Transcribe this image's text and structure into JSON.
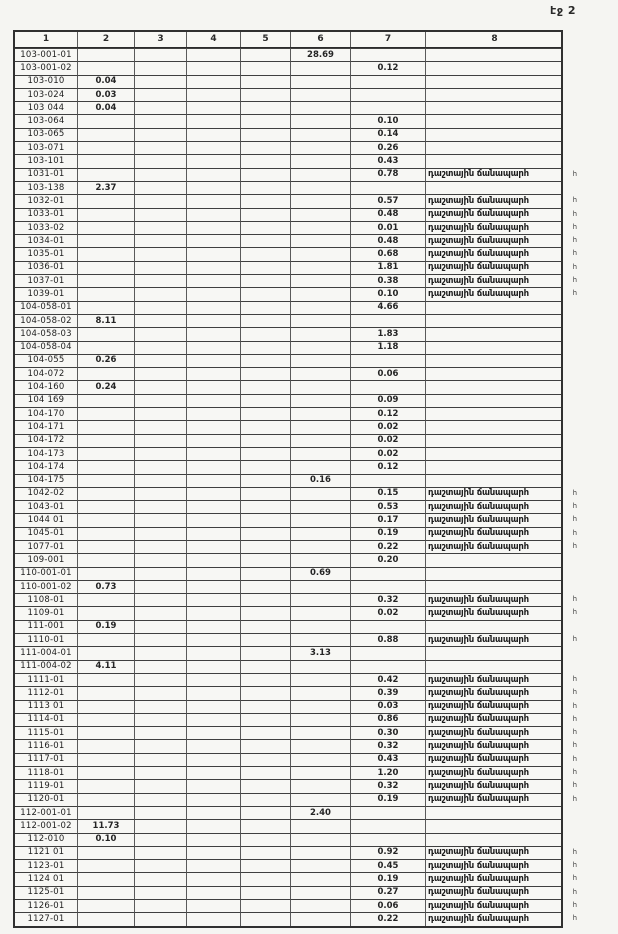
{
  "page_label": "էջ 2",
  "table": {
    "headers": [
      "1",
      "2",
      "3",
      "4",
      "5",
      "6",
      "7",
      "8"
    ],
    "note_text": "դաշտային ճանապարհ",
    "note_overflow": "հ",
    "rows": [
      {
        "id": "103-001-01",
        "c2": "",
        "c6": "28.69",
        "c7": "",
        "note": false
      },
      {
        "id": "103-001-02",
        "c2": "",
        "c6": "",
        "c7": "0.12",
        "note": false
      },
      {
        "id": "103-010",
        "c2": "0.04",
        "c6": "",
        "c7": "",
        "note": false
      },
      {
        "id": "103-024",
        "c2": "0.03",
        "c6": "",
        "c7": "",
        "note": false
      },
      {
        "id": "103 044",
        "c2": "0.04",
        "c6": "",
        "c7": "",
        "note": false
      },
      {
        "id": "103-064",
        "c2": "",
        "c6": "",
        "c7": "0.10",
        "note": false
      },
      {
        "id": "103-065",
        "c2": "",
        "c6": "",
        "c7": "0.14",
        "note": false
      },
      {
        "id": "103-071",
        "c2": "",
        "c6": "",
        "c7": "0.26",
        "note": false
      },
      {
        "id": "103-101",
        "c2": "",
        "c6": "",
        "c7": "0.43",
        "note": false
      },
      {
        "id": "1031-01",
        "c2": "",
        "c6": "",
        "c7": "0.78",
        "note": true
      },
      {
        "id": "103-138",
        "c2": "2.37",
        "c6": "",
        "c7": "",
        "note": false
      },
      {
        "id": "1032-01",
        "c2": "",
        "c6": "",
        "c7": "0.57",
        "note": true
      },
      {
        "id": "1033-01",
        "c2": "",
        "c6": "",
        "c7": "0.48",
        "note": true
      },
      {
        "id": "1033-02",
        "c2": "",
        "c6": "",
        "c7": "0.01",
        "note": true
      },
      {
        "id": "1034-01",
        "c2": "",
        "c6": "",
        "c7": "0.48",
        "note": true
      },
      {
        "id": "1035-01",
        "c2": "",
        "c6": "",
        "c7": "0.68",
        "note": true
      },
      {
        "id": "1036-01",
        "c2": "",
        "c6": "",
        "c7": "1.81",
        "note": true
      },
      {
        "id": "1037-01",
        "c2": "",
        "c6": "",
        "c7": "0.38",
        "note": true
      },
      {
        "id": "1039-01",
        "c2": "",
        "c6": "",
        "c7": "0.10",
        "note": true
      },
      {
        "id": "104-058-01",
        "c2": "",
        "c6": "",
        "c7": "4.66",
        "note": false
      },
      {
        "id": "104-058-02",
        "c2": "8.11",
        "c6": "",
        "c7": "",
        "note": false
      },
      {
        "id": "104-058-03",
        "c2": "",
        "c6": "",
        "c7": "1.83",
        "note": false
      },
      {
        "id": "104-058-04",
        "c2": "",
        "c6": "",
        "c7": "1.18",
        "note": false
      },
      {
        "id": "104-055",
        "c2": "0.26",
        "c6": "",
        "c7": "",
        "note": false
      },
      {
        "id": "104-072",
        "c2": "",
        "c6": "",
        "c7": "0.06",
        "note": false
      },
      {
        "id": "104-160",
        "c2": "0.24",
        "c6": "",
        "c7": "",
        "note": false
      },
      {
        "id": "104 169",
        "c2": "",
        "c6": "",
        "c7": "0.09",
        "note": false
      },
      {
        "id": "104-170",
        "c2": "",
        "c6": "",
        "c7": "0.12",
        "note": false
      },
      {
        "id": "104-171",
        "c2": "",
        "c6": "",
        "c7": "0.02",
        "note": false
      },
      {
        "id": "104-172",
        "c2": "",
        "c6": "",
        "c7": "0.02",
        "note": false
      },
      {
        "id": "104-173",
        "c2": "",
        "c6": "",
        "c7": "0.02",
        "note": false
      },
      {
        "id": "104-174",
        "c2": "",
        "c6": "",
        "c7": "0.12",
        "note": false
      },
      {
        "id": "104-175",
        "c2": "",
        "c6": "0.16",
        "c7": "",
        "note": false
      },
      {
        "id": "1042-02",
        "c2": "",
        "c6": "",
        "c7": "0.15",
        "note": true
      },
      {
        "id": "1043-01",
        "c2": "",
        "c6": "",
        "c7": "0.53",
        "note": true
      },
      {
        "id": "1044 01",
        "c2": "",
        "c6": "",
        "c7": "0.17",
        "note": true
      },
      {
        "id": "1045-01",
        "c2": "",
        "c6": "",
        "c7": "0.19",
        "note": true
      },
      {
        "id": "1077-01",
        "c2": "",
        "c6": "",
        "c7": "0.22",
        "note": true
      },
      {
        "id": "109-001",
        "c2": "",
        "c6": "",
        "c7": "0.20",
        "note": false
      },
      {
        "id": "110-001-01",
        "c2": "",
        "c6": "0.69",
        "c7": "",
        "note": false
      },
      {
        "id": "110-001-02",
        "c2": "0.73",
        "c6": "",
        "c7": "",
        "note": false
      },
      {
        "id": "1108-01",
        "c2": "",
        "c6": "",
        "c7": "0.32",
        "note": true
      },
      {
        "id": "1109-01",
        "c2": "",
        "c6": "",
        "c7": "0.02",
        "note": true
      },
      {
        "id": "111-001",
        "c2": "0.19",
        "c6": "",
        "c7": "",
        "note": false
      },
      {
        "id": "1110-01",
        "c2": "",
        "c6": "",
        "c7": "0.88",
        "note": true
      },
      {
        "id": "111-004-01",
        "c2": "",
        "c6": "3.13",
        "c7": "",
        "note": false
      },
      {
        "id": "111-004-02",
        "c2": "4.11",
        "c6": "",
        "c7": "",
        "note": false
      },
      {
        "id": "1111-01",
        "c2": "",
        "c6": "",
        "c7": "0.42",
        "note": true
      },
      {
        "id": "1112-01",
        "c2": "",
        "c6": "",
        "c7": "0.39",
        "note": true
      },
      {
        "id": "1113 01",
        "c2": "",
        "c6": "",
        "c7": "0.03",
        "note": true
      },
      {
        "id": "1114-01",
        "c2": "",
        "c6": "",
        "c7": "0.86",
        "note": true
      },
      {
        "id": "1115-01",
        "c2": "",
        "c6": "",
        "c7": "0.30",
        "note": true
      },
      {
        "id": "1116-01",
        "c2": "",
        "c6": "",
        "c7": "0.32",
        "note": true
      },
      {
        "id": "1117-01",
        "c2": "",
        "c6": "",
        "c7": "0.43",
        "note": true
      },
      {
        "id": "1118-01",
        "c2": "",
        "c6": "",
        "c7": "1.20",
        "note": true
      },
      {
        "id": "1119-01",
        "c2": "",
        "c6": "",
        "c7": "0.32",
        "note": true
      },
      {
        "id": "1120-01",
        "c2": "",
        "c6": "",
        "c7": "0.19",
        "note": true
      },
      {
        "id": "112-001-01",
        "c2": "",
        "c6": "2.40",
        "c7": "",
        "note": false
      },
      {
        "id": "112-001-02",
        "c2": "11.73",
        "c6": "",
        "c7": "",
        "note": false
      },
      {
        "id": "112-010",
        "c2": "0.10",
        "c6": "",
        "c7": "",
        "note": false
      },
      {
        "id": "1121 01",
        "c2": "",
        "c6": "",
        "c7": "0.92",
        "note": true
      },
      {
        "id": "1123-01",
        "c2": "",
        "c6": "",
        "c7": "0.45",
        "note": true
      },
      {
        "id": "1124 01",
        "c2": "",
        "c6": "",
        "c7": "0.19",
        "note": true
      },
      {
        "id": "1125-01",
        "c2": "",
        "c6": "",
        "c7": "0.27",
        "note": true
      },
      {
        "id": "1126-01",
        "c2": "",
        "c6": "",
        "c7": "0.06",
        "note": true
      },
      {
        "id": "1127-01",
        "c2": "",
        "c6": "",
        "c7": "0.22",
        "note": true
      }
    ]
  }
}
